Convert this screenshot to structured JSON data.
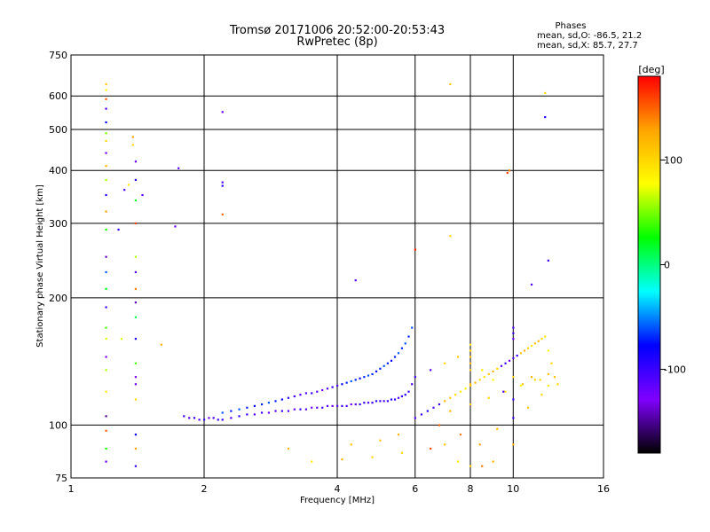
{
  "chart_data": {
    "type": "scatter",
    "title": "Tromsø 20171006 20:52:00-20:53:43",
    "subtitle": "RwPretec (8p)",
    "xlabel": "Frequency [MHz]",
    "ylabel": "Stationary phase Virtual Height [km]",
    "x_scale": "log",
    "y_scale": "log",
    "xlim": [
      1,
      16
    ],
    "ylim": [
      75,
      750
    ],
    "x_ticks": [
      1,
      2,
      4,
      6,
      8,
      10,
      16
    ],
    "y_ticks": [
      75,
      100,
      200,
      300,
      400,
      500,
      600,
      750
    ],
    "grid": true,
    "phase_header": "Phases",
    "phase_stats": [
      "mean, sd,O: -86.5, 21.2",
      "mean, sd,X: 85.7, 27.7"
    ],
    "colorbar": {
      "label": "[deg]",
      "range": [
        -180,
        180
      ],
      "ticks": [
        100,
        0,
        -100
      ],
      "colors": [
        "#ff0000",
        "#ffa500",
        "#ffff00",
        "#00ff00",
        "#00ffff",
        "#0000ff",
        "#8000ff",
        "#000000"
      ]
    },
    "series": [
      {
        "x": [
          1.2,
          1.2,
          1.2,
          1.2,
          1.2,
          1.2,
          1.2,
          1.2,
          1.2,
          1.2,
          1.2,
          1.2,
          1.2,
          1.2,
          1.2,
          1.2,
          1.2,
          1.2,
          1.2,
          1.2,
          1.2,
          1.2,
          1.2,
          1.2,
          1.2,
          1.2,
          1.38,
          1.38,
          1.4,
          1.4,
          1.4,
          1.4,
          1.4,
          1.4,
          1.4,
          1.4,
          1.4,
          1.4,
          1.4,
          1.4,
          1.4,
          1.4,
          1.4,
          1.4,
          1.4,
          1.32,
          1.35,
          1.45,
          1.28,
          1.3,
          1.6,
          1.75,
          1.72,
          2.2,
          2.2,
          2.2,
          2.2,
          3.1,
          3.5,
          4.4,
          5.0,
          5.5,
          6.0,
          7.0,
          7.2,
          7.2,
          9.8,
          9.7,
          11.0,
          11.8,
          11.8,
          12.0,
          8.0,
          8.5,
          9.0,
          4.1,
          4.3,
          4.8,
          6.5,
          7.5,
          5.6
        ],
        "y": [
          640,
          620,
          590,
          560,
          520,
          490,
          470,
          440,
          410,
          380,
          350,
          320,
          290,
          250,
          230,
          210,
          190,
          170,
          160,
          145,
          135,
          120,
          105,
          97,
          88,
          82,
          480,
          460,
          420,
          380,
          340,
          300,
          250,
          230,
          210,
          195,
          180,
          160,
          140,
          130,
          125,
          115,
          95,
          88,
          80,
          360,
          370,
          350,
          290,
          160,
          155,
          405,
          295,
          550,
          375,
          368,
          315,
          88,
          82,
          220,
          92,
          95,
          260,
          90,
          640,
          280,
          400,
          395,
          215,
          610,
          535,
          245,
          80,
          80,
          82,
          83,
          90,
          84,
          88,
          82,
          86
        ],
        "phase": [
          110,
          80,
          150,
          -110,
          -80,
          50,
          100,
          -120,
          120,
          60,
          -90,
          130,
          30,
          -140,
          -60,
          20,
          -100,
          40,
          70,
          -130,
          60,
          90,
          -150,
          150,
          30,
          -120,
          130,
          100,
          -120,
          -90,
          20,
          160,
          60,
          -110,
          140,
          -140,
          10,
          -90,
          40,
          -130,
          -120,
          100,
          -80,
          130,
          -100,
          -110,
          90,
          -110,
          -100,
          70,
          120,
          -110,
          -120,
          -120,
          -110,
          -90,
          150,
          120,
          90,
          -110,
          110,
          120,
          170,
          110,
          110,
          100,
          140,
          160,
          -110,
          100,
          -90,
          -100,
          100,
          140,
          120,
          120,
          110,
          100,
          160,
          90,
          100
        ]
      },
      {
        "x": [
          1.8,
          1.85,
          1.9,
          1.95,
          2.0,
          2.05,
          2.1,
          2.15,
          2.2,
          2.3,
          2.4,
          2.5,
          2.6,
          2.7,
          2.8,
          2.9,
          3.0,
          3.1,
          3.2,
          3.3,
          3.4,
          3.5,
          3.6,
          3.7,
          3.8,
          3.9,
          4.0,
          4.1,
          4.2,
          4.3,
          4.4,
          4.5,
          4.6,
          4.7,
          4.8,
          4.9,
          5.0,
          5.1,
          5.2,
          5.3,
          5.4,
          5.5,
          5.6,
          5.7,
          5.8,
          5.9,
          6.0
        ],
        "y": [
          105,
          104,
          104,
          103,
          103,
          104,
          104,
          103,
          103,
          104,
          105,
          106,
          106,
          107,
          107,
          108,
          108,
          108,
          109,
          109,
          109,
          110,
          110,
          110,
          111,
          111,
          111,
          111,
          111,
          112,
          112,
          112,
          113,
          113,
          113,
          114,
          114,
          114,
          114,
          115,
          115,
          116,
          117,
          118,
          120,
          125,
          130
        ],
        "phase": [
          -100,
          -110,
          -100,
          -110,
          -100,
          -120,
          -110,
          -100,
          -100,
          -110,
          -90,
          -100,
          -110,
          -100,
          -120,
          -110,
          -100,
          -110,
          -120,
          -100,
          -110,
          -120,
          -110,
          -100,
          -110,
          -120,
          -110,
          -100,
          -110,
          -120,
          -110,
          -100,
          -100,
          -110,
          -100,
          -90,
          -100,
          -110,
          -100,
          -90,
          -100,
          -110,
          -100,
          -90,
          -100,
          -110,
          -100
        ]
      },
      {
        "x": [
          2.2,
          2.3,
          2.4,
          2.5,
          2.6,
          2.7,
          2.8,
          2.9,
          3.0,
          3.1,
          3.2,
          3.3,
          3.4,
          3.5,
          3.6,
          3.7,
          3.8,
          3.9,
          4.0,
          4.1,
          4.2,
          4.3,
          4.4,
          4.5,
          4.6,
          4.7,
          4.8,
          4.9,
          5.0,
          5.1,
          5.2,
          5.3,
          5.4,
          5.5,
          5.6,
          5.7,
          5.8,
          5.9
        ],
        "y": [
          107,
          108,
          109,
          110,
          111,
          112,
          113,
          114,
          115,
          116,
          117,
          118,
          119,
          119,
          120,
          121,
          122,
          123,
          124,
          125,
          126,
          127,
          128,
          129,
          130,
          131,
          132,
          134,
          136,
          138,
          140,
          142,
          145,
          148,
          152,
          156,
          162,
          170
        ],
        "phase": [
          -60,
          -70,
          -60,
          -70,
          -80,
          -70,
          -60,
          -70,
          -80,
          -90,
          -100,
          -110,
          -110,
          -100,
          -110,
          -120,
          -110,
          -100,
          -110,
          -80,
          -70,
          -60,
          -70,
          -80,
          -70,
          -60,
          -70,
          -80,
          -70,
          -60,
          -70,
          -80,
          -70,
          -60,
          -70,
          -60,
          -70,
          -60
        ]
      },
      {
        "x": [
          6.0,
          6.2,
          6.4,
          6.6,
          6.8,
          7.0,
          7.2,
          7.4,
          7.6,
          7.8,
          8.0,
          8.2,
          8.4,
          8.6,
          8.8,
          9.0,
          9.2,
          9.4,
          9.6,
          9.8,
          10.0,
          10.2,
          10.4,
          10.6,
          10.8,
          11.0,
          11.2,
          11.4,
          11.6,
          11.8,
          12.0,
          12.2,
          12.4,
          12.6,
          6.5,
          7.0,
          7.5,
          8.0,
          8.5,
          9.0,
          9.5,
          10.0,
          10.5,
          11.0,
          11.5,
          12.0,
          6.8,
          7.6,
          8.4,
          9.2,
          10.0,
          10.8,
          11.6,
          7.2,
          8.0,
          8.8,
          9.6,
          10.4,
          11.2,
          12.0,
          8.0,
          8.0,
          8.0,
          8.0,
          8.0,
          8.0,
          10.0,
          10.0,
          10.0,
          10.0,
          10.0
        ],
        "y": [
          104,
          106,
          108,
          110,
          112,
          114,
          116,
          118,
          120,
          122,
          124,
          126,
          128,
          130,
          132,
          134,
          136,
          138,
          140,
          142,
          144,
          146,
          148,
          150,
          152,
          154,
          156,
          158,
          160,
          162,
          150,
          140,
          130,
          125,
          135,
          140,
          145,
          150,
          135,
          128,
          120,
          115,
          125,
          130,
          128,
          124,
          100,
          95,
          90,
          98,
          104,
          110,
          118,
          108,
          112,
          116,
          120,
          124,
          128,
          132,
          140,
          145,
          150,
          155,
          135,
          125,
          170,
          165,
          160,
          130,
          90
        ],
        "phase": [
          -110,
          -100,
          -90,
          -110,
          -100,
          120,
          110,
          100,
          90,
          80,
          110,
          120,
          100,
          90,
          110,
          120,
          100,
          -110,
          -100,
          -120,
          -110,
          -100,
          110,
          120,
          100,
          90,
          110,
          120,
          100,
          90,
          80,
          100,
          110,
          100,
          -110,
          100,
          110,
          120,
          90,
          80,
          -110,
          -100,
          110,
          120,
          100,
          90,
          150,
          140,
          130,
          120,
          -100,
          110,
          100,
          120,
          110,
          100,
          90,
          80,
          100,
          110,
          120,
          110,
          100,
          90,
          110,
          120,
          -110,
          -100,
          -120,
          100,
          120
        ]
      }
    ]
  }
}
